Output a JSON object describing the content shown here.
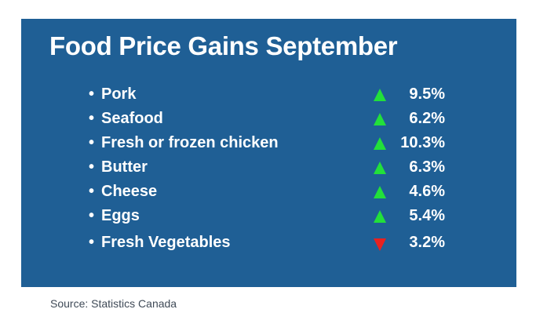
{
  "title": "Food Price Gains September",
  "bullet": "•",
  "items": [
    {
      "label": "Pork",
      "direction": "up",
      "value": "9.5%"
    },
    {
      "label": "Seafood",
      "direction": "up",
      "value": "6.2%"
    },
    {
      "label": "Fresh or frozen chicken",
      "direction": "up",
      "value": "10.3%"
    },
    {
      "label": "Butter",
      "direction": "up",
      "value": "6.3%"
    },
    {
      "label": "Cheese",
      "direction": "up",
      "value": "4.6%"
    },
    {
      "label": "Eggs",
      "direction": "up",
      "value": "5.4%"
    },
    {
      "label": "Fresh Vegetables",
      "direction": "down",
      "value": "3.2%"
    }
  ],
  "colors": {
    "card": "#1f5f95",
    "up": "#22e03a",
    "down": "#e8211f"
  },
  "icons": {
    "up": "up-arrow-icon",
    "down": "down-arrow-icon"
  },
  "source": "Source: Statistics Canada"
}
